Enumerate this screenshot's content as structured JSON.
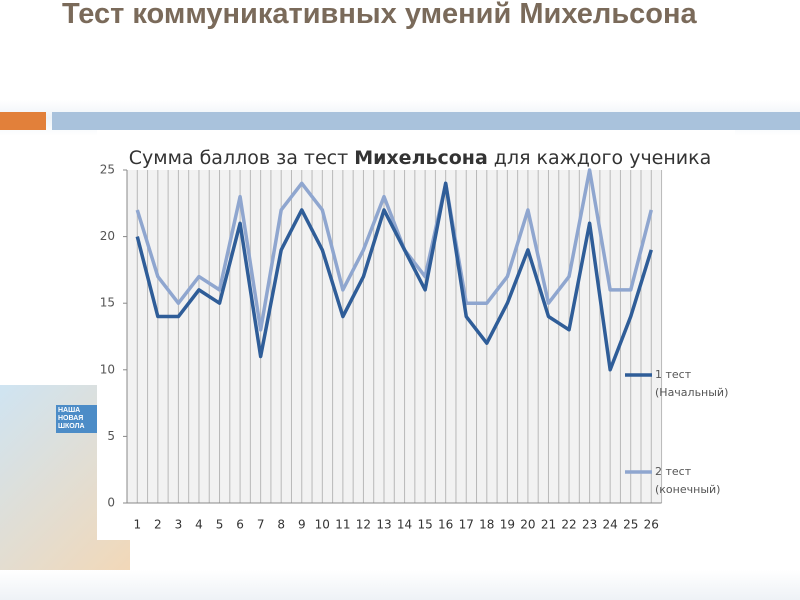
{
  "slide_title": "Тест коммуникативных умений Михельсона",
  "logo": "НАША НОВАЯ ШКОЛА",
  "chart_data": {
    "type": "line",
    "title": [
      "Сумма баллов за тест ",
      "Михельсона",
      " для каждого ученика"
    ],
    "categories": [
      "1",
      "2",
      "3",
      "4",
      "5",
      "6",
      "7",
      "8",
      "9",
      "10",
      "11",
      "12",
      "13",
      "14",
      "15",
      "16",
      "17",
      "18",
      "19",
      "20",
      "21",
      "22",
      "23",
      "24",
      "25",
      "26"
    ],
    "series": [
      {
        "name": "1 тест (Начальный)",
        "color": "#2f5d98",
        "values": [
          20,
          14,
          14,
          16,
          15,
          21,
          11,
          19,
          22,
          19,
          14,
          17,
          22,
          19,
          16,
          24,
          14,
          12,
          15,
          19,
          14,
          13,
          21,
          10,
          14,
          19
        ]
      },
      {
        "name": "2 тест (конечный)",
        "color": "#8fa6cf",
        "values": [
          22,
          17,
          15,
          17,
          16,
          23,
          13,
          22,
          24,
          22,
          16,
          19,
          23,
          19,
          17,
          24,
          15,
          15,
          17,
          22,
          15,
          17,
          25,
          16,
          16,
          22
        ]
      }
    ],
    "ylim": [
      0,
      25
    ],
    "yticks": [
      0,
      5,
      10,
      15,
      20,
      25
    ],
    "grid": true,
    "legend": "right"
  }
}
